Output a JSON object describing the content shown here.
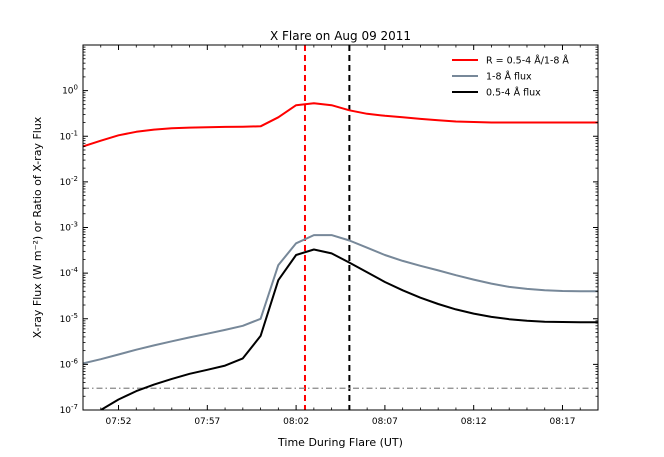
{
  "chart_data": {
    "type": "line",
    "title": "X Flare on Aug 09 2011",
    "xlabel": "Time During Flare (UT)",
    "ylabel": "X-ray Flux (W m⁻²) or Ratio of X-ray Flux",
    "yscale": "log",
    "xlim": [
      0,
      29
    ],
    "ylim_exp": [
      -7,
      1
    ],
    "x_ticks": [
      {
        "x": 2.0,
        "label": "07:52"
      },
      {
        "x": 7.0,
        "label": "07:57"
      },
      {
        "x": 12.0,
        "label": "08:02"
      },
      {
        "x": 17.0,
        "label": "08:07"
      },
      {
        "x": 22.0,
        "label": "08:12"
      },
      {
        "x": 27.0,
        "label": "08:17"
      }
    ],
    "y_ticks": [
      {
        "exp": 0,
        "base": "10",
        "sup": "0"
      },
      {
        "exp": -1,
        "base": "10",
        "sup": "-1"
      },
      {
        "exp": -2,
        "base": "10",
        "sup": "-2"
      },
      {
        "exp": -3,
        "base": "10",
        "sup": "-3"
      },
      {
        "exp": -4,
        "base": "10",
        "sup": "-4"
      },
      {
        "exp": -5,
        "base": "10",
        "sup": "-5"
      },
      {
        "exp": -6,
        "base": "10",
        "sup": "-6"
      },
      {
        "exp": -7,
        "base": "10",
        "sup": "-7"
      }
    ],
    "series": [
      {
        "name": "R = 0.5-4 Å/1-8 Å",
        "color": "#ff0000",
        "x": [
          0,
          1,
          2,
          3,
          4,
          5,
          6,
          7,
          8,
          9,
          10,
          11,
          12,
          13,
          14,
          15,
          16,
          17,
          18,
          19,
          20,
          21,
          22,
          23,
          24,
          25,
          26,
          27,
          28,
          29
        ],
        "y": [
          0.06,
          0.08,
          0.105,
          0.125,
          0.14,
          0.15,
          0.155,
          0.158,
          0.16,
          0.162,
          0.165,
          0.26,
          0.48,
          0.53,
          0.48,
          0.37,
          0.31,
          0.28,
          0.26,
          0.24,
          0.225,
          0.21,
          0.205,
          0.2,
          0.2,
          0.2,
          0.2,
          0.2,
          0.2,
          0.2
        ]
      },
      {
        "name": "1-8 Å flux",
        "color": "#778899",
        "x": [
          0,
          1,
          2,
          3,
          4,
          5,
          6,
          7,
          8,
          9,
          10,
          11,
          12,
          13,
          14,
          15,
          16,
          17,
          18,
          19,
          20,
          21,
          22,
          23,
          24,
          25,
          26,
          27,
          28,
          29
        ],
        "y": [
          1.05e-06,
          1.3e-06,
          1.65e-06,
          2.1e-06,
          2.6e-06,
          3.2e-06,
          3.9e-06,
          4.7e-06,
          5.7e-06,
          7e-06,
          1e-05,
          0.00015,
          0.00045,
          0.00068,
          0.00068,
          0.00052,
          0.00036,
          0.00025,
          0.000185,
          0.000145,
          0.000115,
          9e-05,
          7.2e-05,
          5.9e-05,
          5e-05,
          4.5e-05,
          4.2e-05,
          4.05e-05,
          4e-05,
          4e-05
        ]
      },
      {
        "name": "0.5-4 Å flux",
        "color": "#000000",
        "x": [
          1,
          2,
          3,
          4,
          5,
          6,
          7,
          8,
          9,
          10,
          11,
          12,
          13,
          14,
          15,
          16,
          17,
          18,
          19,
          20,
          21,
          22,
          23,
          24,
          25,
          26,
          27,
          28,
          29
        ],
        "y": [
          1e-07,
          1.7e-07,
          2.6e-07,
          3.6e-07,
          4.8e-07,
          6.2e-07,
          7.6e-07,
          9.4e-07,
          1.35e-06,
          4.2e-06,
          7e-05,
          0.00025,
          0.00033,
          0.00027,
          0.00017,
          0.000105,
          6.4e-05,
          4.2e-05,
          2.9e-05,
          2.1e-05,
          1.6e-05,
          1.3e-05,
          1.1e-05,
          9.8e-06,
          9e-06,
          8.6e-06,
          8.5e-06,
          8.4e-06,
          8.4e-06
        ]
      }
    ],
    "reference_lines": [
      {
        "orientation": "vertical",
        "x": 12.5,
        "color": "#ff0000",
        "style": "dashed"
      },
      {
        "orientation": "vertical",
        "x": 15.0,
        "color": "#000000",
        "style": "dashed"
      },
      {
        "orientation": "horizontal",
        "y": 3e-07,
        "color": "#888888",
        "style": "dashdot"
      }
    ],
    "legend_position": "top-right"
  }
}
